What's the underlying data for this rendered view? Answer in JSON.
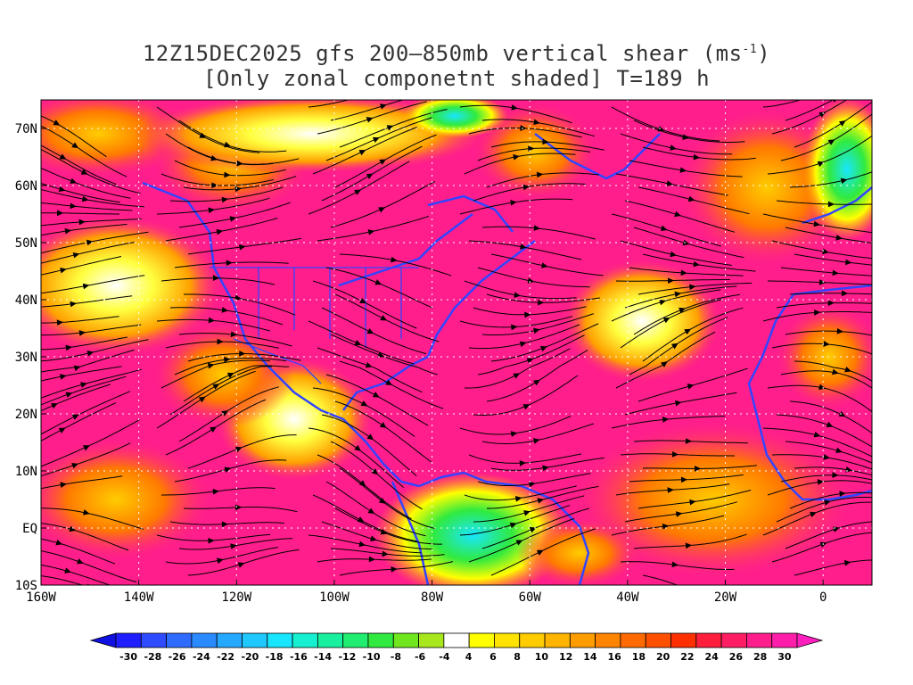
{
  "title": {
    "line1_prefix": "12Z15DEC2025 gfs 200–850mb vertical shear (ms",
    "line1_sup": "-1",
    "line1_suffix": ")",
    "line2": "[Only zonal componetnt shaded] T=189 h"
  },
  "map": {
    "lon_range": [
      -160,
      10
    ],
    "lat_range": [
      -10,
      75
    ],
    "lat_labels": [
      "70N",
      "60N",
      "50N",
      "40N",
      "30N",
      "20N",
      "10N",
      "EQ",
      "10S"
    ],
    "lat_values": [
      70,
      60,
      50,
      40,
      30,
      20,
      10,
      0,
      -10
    ],
    "lon_labels": [
      "160W",
      "140W",
      "120W",
      "100W",
      "80W",
      "60W",
      "40W",
      "20W",
      "0"
    ],
    "lon_values": [
      -160,
      -140,
      -120,
      -100,
      -80,
      -60,
      -40,
      -20,
      0
    ],
    "grid": true,
    "coastline_color": "#3344ff",
    "streamline_color": "#000000"
  },
  "colorbar": {
    "labels": [
      "-30",
      "-28",
      "-26",
      "-24",
      "-22",
      "-20",
      "-18",
      "-16",
      "-14",
      "-12",
      "-10",
      "-8",
      "-6",
      "-4",
      "4",
      "6",
      "8",
      "10",
      "12",
      "14",
      "16",
      "18",
      "20",
      "22",
      "24",
      "26",
      "28",
      "30"
    ],
    "colors": [
      "#1e1eff",
      "#2e4bff",
      "#2f6bff",
      "#2a8aff",
      "#25a8ff",
      "#1fc8ff",
      "#18e6ff",
      "#16f0d0",
      "#18f0a0",
      "#20ee70",
      "#30ea40",
      "#70e61e",
      "#a8e61e",
      "#ffffff",
      "#ffff00",
      "#ffe200",
      "#ffcc00",
      "#ffb400",
      "#ff9c00",
      "#ff8400",
      "#ff6a00",
      "#ff5000",
      "#ff3000",
      "#ff1e3c",
      "#ff1e64",
      "#ff1e8c",
      "#ff1eaa"
    ],
    "low_end_color": "#1010e0",
    "high_end_color": "#ff1ebe"
  }
}
